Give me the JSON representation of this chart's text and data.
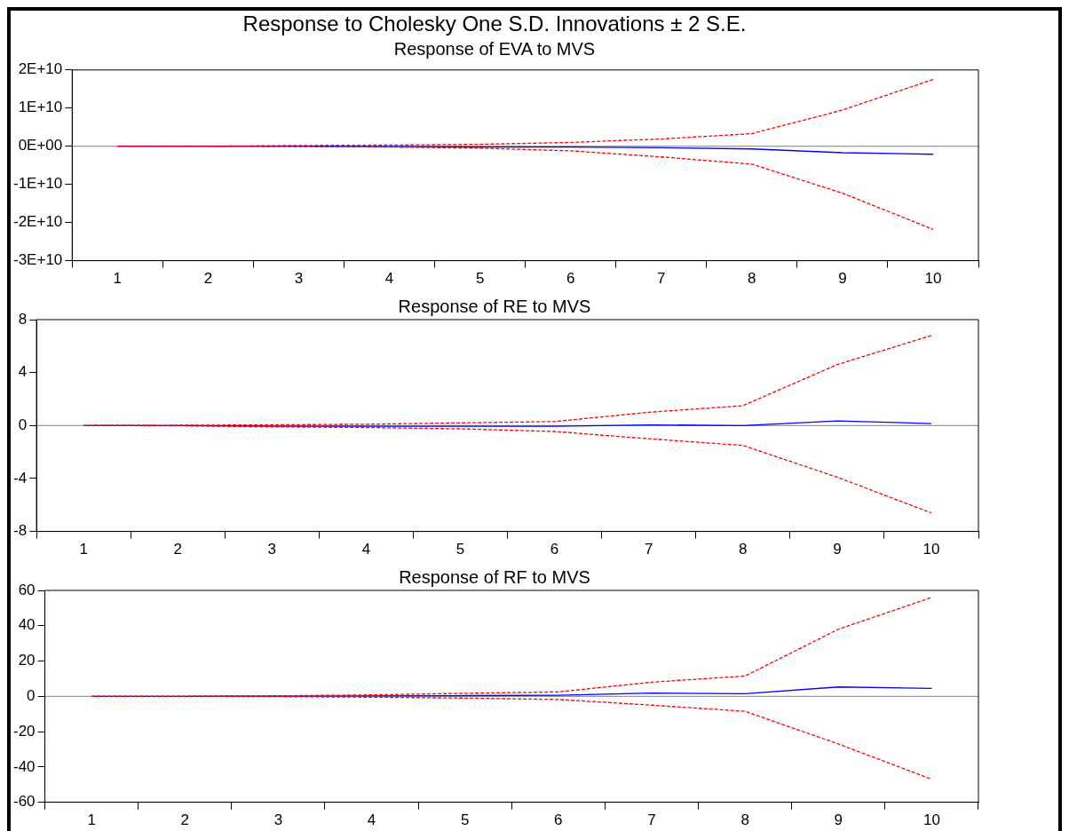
{
  "chart_data": [
    {
      "type": "line",
      "title": "Response to Cholesky One S.D. Innovations ± 2 S.E.",
      "subtitle": "Response of EVA to MVS",
      "categories": [
        "1",
        "2",
        "3",
        "4",
        "5",
        "6",
        "7",
        "8",
        "9",
        "10"
      ],
      "series": [
        {
          "color": "#0000ff",
          "line_style": "solid",
          "values": [
            0,
            0,
            0,
            -100000000,
            -200000000,
            -200000000,
            -400000000,
            -700000000,
            -1700000000,
            -2100000000
          ]
        },
        {
          "color": "#ff0000",
          "line_style": "dashed",
          "values": [
            0,
            0,
            200000000,
            300000000,
            500000000,
            1000000000,
            1900000000,
            3300000000,
            9500000000,
            17500000000
          ]
        },
        {
          "color": "#ff0000",
          "line_style": "dashed",
          "values": [
            0,
            0,
            -100000000,
            -200000000,
            -500000000,
            -1200000000,
            -2800000000,
            -4700000000,
            -12300000000,
            -21800000000
          ]
        }
      ],
      "ylim": [
        -30000000000,
        20000000000
      ],
      "yticks": [
        {
          "value": -30000000000,
          "label": "-3E+10"
        },
        {
          "value": -20000000000,
          "label": "-2E+10"
        },
        {
          "value": -10000000000,
          "label": "-1E+10"
        },
        {
          "value": 0,
          "label": "0E+00"
        },
        {
          "value": 10000000000,
          "label": "1E+10"
        },
        {
          "value": 20000000000,
          "label": "2E+10"
        }
      ],
      "grid": false,
      "ref_lines": [
        {
          "axis": "y",
          "value": 0,
          "color": "#808080"
        }
      ]
    },
    {
      "type": "line",
      "title": "Response of RE to MVS",
      "categories": [
        "1",
        "2",
        "3",
        "4",
        "5",
        "6",
        "7",
        "8",
        "9",
        "10"
      ],
      "series": [
        {
          "color": "#0000ff",
          "line_style": "solid",
          "values": [
            0,
            0,
            -0.05,
            -0.05,
            -0.05,
            -0.05,
            0.05,
            0,
            0.35,
            0.15
          ]
        },
        {
          "color": "#ff0000",
          "line_style": "dashed",
          "values": [
            0,
            0.02,
            0.05,
            0.1,
            0.2,
            0.3,
            1.0,
            1.5,
            4.6,
            6.8
          ]
        },
        {
          "color": "#ff0000",
          "line_style": "dashed",
          "values": [
            0,
            -0.02,
            -0.1,
            -0.15,
            -0.25,
            -0.45,
            -1.0,
            -1.5,
            -3.9,
            -6.6
          ]
        }
      ],
      "ylim": [
        -8,
        8
      ],
      "yticks": [
        {
          "value": -8,
          "label": "-8"
        },
        {
          "value": -4,
          "label": "-4"
        },
        0,
        4,
        8
      ],
      "grid": false,
      "ref_lines": [
        {
          "axis": "y",
          "value": 0,
          "color": "#808080"
        }
      ]
    },
    {
      "type": "line",
      "title": "Response of RF to MVS",
      "categories": [
        "1",
        "2",
        "3",
        "4",
        "5",
        "6",
        "7",
        "8",
        "9",
        "10"
      ],
      "series": [
        {
          "color": "#0000ff",
          "line_style": "solid",
          "values": [
            0,
            0,
            0.1,
            0.2,
            0.4,
            0.6,
            1.8,
            1.5,
            5.3,
            4.5
          ]
        },
        {
          "color": "#ff0000",
          "line_style": "dashed",
          "values": [
            0,
            0,
            0.3,
            0.8,
            1.7,
            2.5,
            8,
            11.5,
            38,
            56
          ]
        },
        {
          "color": "#ff0000",
          "line_style": "dashed",
          "values": [
            0,
            0,
            -0.2,
            -0.5,
            -1,
            -1.8,
            -5,
            -8.5,
            -27,
            -47
          ]
        }
      ],
      "ylim": [
        -60,
        60
      ],
      "yticks": [
        {
          "value": -60,
          "label": "-60"
        },
        {
          "value": -40,
          "label": "-40"
        },
        {
          "value": -20,
          "label": "-20"
        },
        0,
        20,
        40,
        60
      ],
      "grid": false,
      "ref_lines": [
        {
          "axis": "y",
          "value": 0,
          "color": "#808080"
        }
      ]
    }
  ]
}
